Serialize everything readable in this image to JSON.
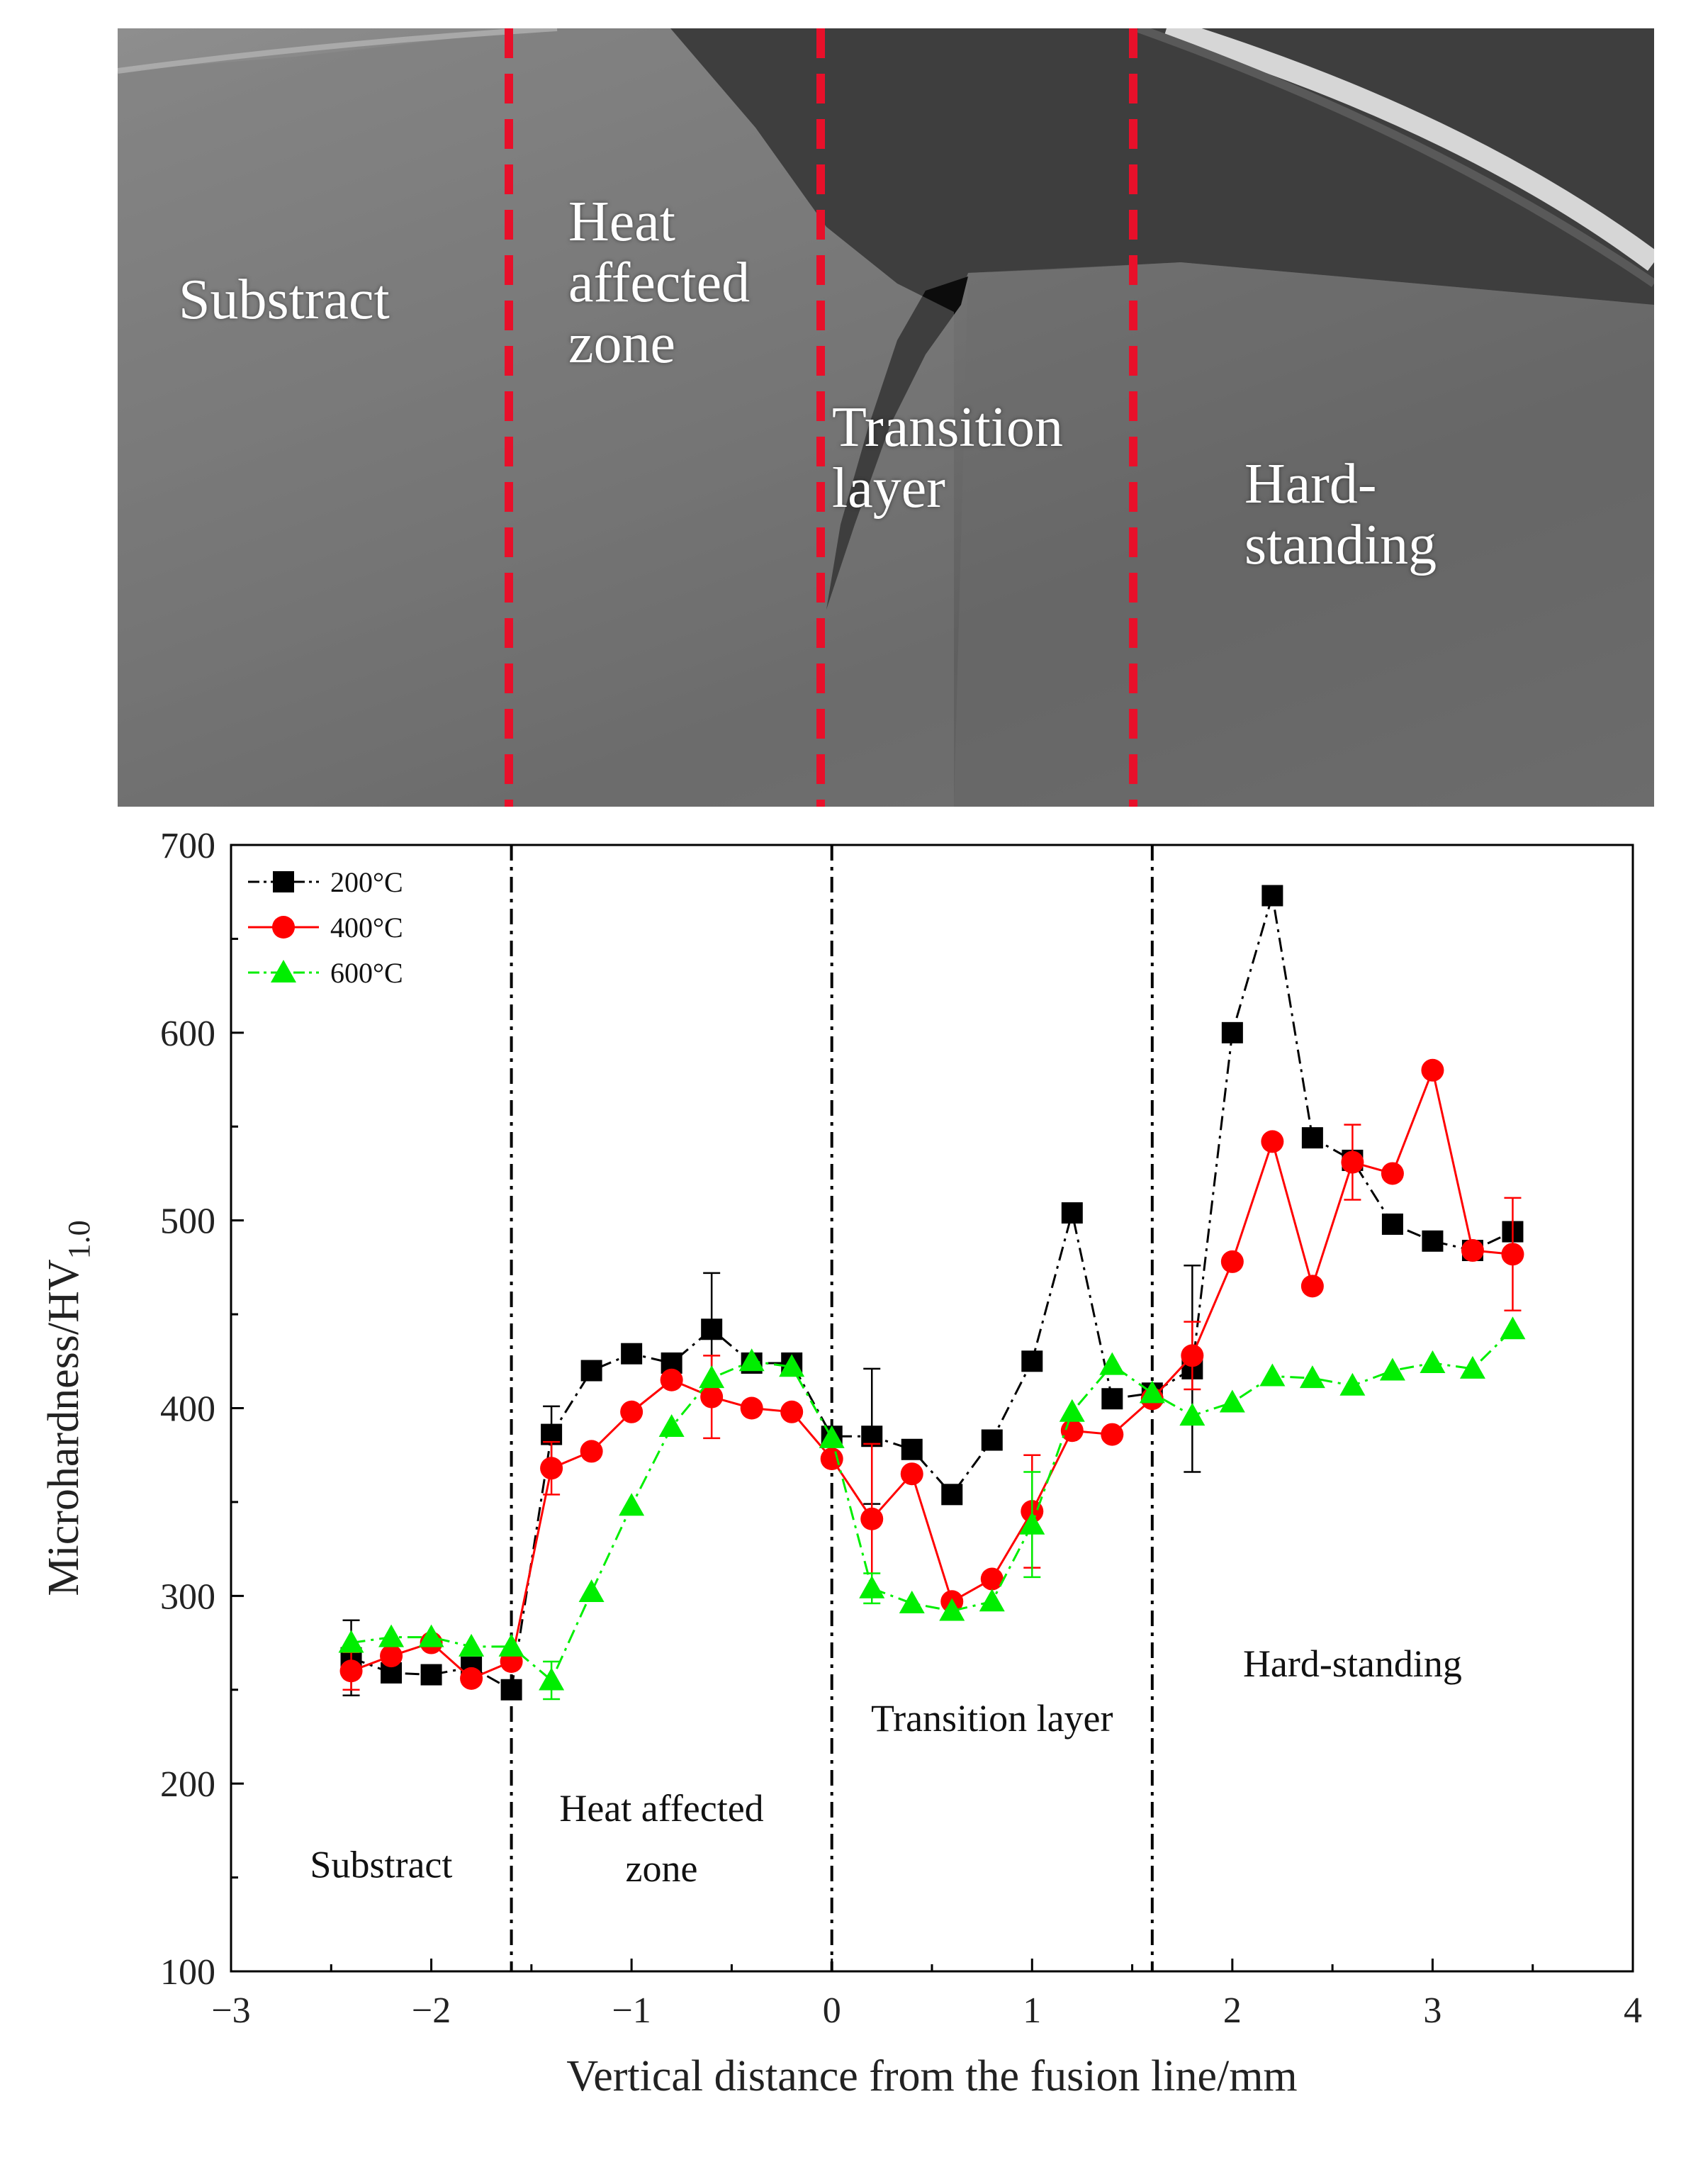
{
  "micrograph": {
    "labels": {
      "substrate": "Substract",
      "haz": "Heat\naffected\nzone",
      "transition": "Transition\nlayer",
      "hard": "Hard-\nstanding"
    }
  },
  "colors": {
    "series_200": "#000000",
    "series_400": "#ff0000",
    "series_600": "#00ee00",
    "divider_red": "#e8102a"
  },
  "chart_data": {
    "type": "line",
    "title": "",
    "xlabel": "Vertical distance from the fusion line/mm",
    "ylabel_main": "Microhardness/HV",
    "ylabel_sub": "1.0",
    "xlim": [
      -3,
      4
    ],
    "ylim": [
      100,
      700
    ],
    "xticks": [
      -3,
      -2,
      -1,
      0,
      1,
      2,
      3,
      4
    ],
    "xtick_labels": [
      "−3",
      "−2",
      "−1",
      "0",
      "1",
      "2",
      "3",
      "4"
    ],
    "yticks": [
      100,
      200,
      300,
      400,
      500,
      600,
      700
    ],
    "ytick_labels": [
      "100",
      "200",
      "300",
      "400",
      "500",
      "600",
      "700"
    ],
    "region_dividers": [
      -1.6,
      0,
      1.6
    ],
    "region_labels": [
      {
        "text": "Substract",
        "x": -2.25,
        "y": 150
      },
      {
        "text": "Heat affected",
        "x": -0.85,
        "y": 180
      },
      {
        "text": "zone",
        "x": -0.85,
        "y": 148
      },
      {
        "text": "Transition layer",
        "x": 0.8,
        "y": 228
      },
      {
        "text": "Hard-standing",
        "x": 2.6,
        "y": 257
      }
    ],
    "legend_position": "top-left",
    "series": [
      {
        "name": "200°C",
        "marker": "square",
        "x": [
          -2.4,
          -2.2,
          -2.0,
          -1.8,
          -1.6,
          -1.4,
          -1.2,
          -1.0,
          -0.8,
          -0.6,
          -0.4,
          -0.2,
          0.0,
          0.2,
          0.4,
          0.6,
          0.8,
          1.0,
          1.2,
          1.4,
          1.6,
          1.8,
          2.0,
          2.2,
          2.4,
          2.6,
          2.8,
          3.0,
          3.2,
          3.4
        ],
        "y": [
          267,
          259,
          258,
          262,
          250,
          386,
          420,
          429,
          424,
          442,
          424,
          424,
          385,
          385,
          378,
          354,
          383,
          425,
          504,
          405,
          408,
          421,
          600,
          673,
          544,
          532,
          498,
          489,
          484,
          494
        ],
        "err": [
          20,
          0,
          0,
          0,
          0,
          15,
          0,
          0,
          0,
          30,
          0,
          0,
          0,
          36,
          0,
          0,
          0,
          0,
          0,
          0,
          0,
          55,
          0,
          0,
          0,
          0,
          0,
          0,
          0,
          0
        ]
      },
      {
        "name": "400°C",
        "marker": "circle",
        "x": [
          -2.4,
          -2.2,
          -2.0,
          -1.8,
          -1.6,
          -1.4,
          -1.2,
          -1.0,
          -0.8,
          -0.6,
          -0.4,
          -0.2,
          0.0,
          0.2,
          0.4,
          0.6,
          0.8,
          1.0,
          1.2,
          1.4,
          1.6,
          1.8,
          2.0,
          2.2,
          2.4,
          2.6,
          2.8,
          3.0,
          3.2,
          3.4
        ],
        "y": [
          260,
          268,
          275,
          256,
          265,
          368,
          377,
          398,
          415,
          406,
          400,
          398,
          373,
          341,
          365,
          297,
          309,
          345,
          388,
          386,
          405,
          428,
          478,
          542,
          465,
          531,
          525,
          580,
          484,
          482
        ],
        "err": [
          10,
          0,
          0,
          0,
          0,
          14,
          0,
          0,
          0,
          22,
          0,
          0,
          0,
          40,
          0,
          0,
          0,
          30,
          0,
          0,
          0,
          18,
          0,
          0,
          0,
          20,
          0,
          0,
          0,
          30
        ]
      },
      {
        "name": "600°C",
        "marker": "triangle",
        "x": [
          -2.4,
          -2.2,
          -2.0,
          -1.8,
          -1.6,
          -1.4,
          -1.2,
          -1.0,
          -0.8,
          -0.6,
          -0.4,
          -0.2,
          0.0,
          0.2,
          0.4,
          0.6,
          0.8,
          1.0,
          1.2,
          1.4,
          1.6,
          1.8,
          2.0,
          2.2,
          2.4,
          2.6,
          2.8,
          3.0,
          3.2,
          3.4
        ],
        "y": [
          275,
          278,
          278,
          273,
          273,
          255,
          302,
          348,
          390,
          416,
          425,
          422,
          384,
          304,
          296,
          292,
          297,
          338,
          398,
          423,
          408,
          396,
          403,
          417,
          416,
          412,
          420,
          424,
          421,
          442
        ],
        "err": [
          0,
          0,
          0,
          0,
          0,
          10,
          0,
          0,
          0,
          0,
          0,
          0,
          0,
          8,
          0,
          0,
          0,
          28,
          0,
          0,
          0,
          0,
          0,
          0,
          0,
          0,
          0,
          0,
          0,
          0
        ]
      }
    ]
  }
}
